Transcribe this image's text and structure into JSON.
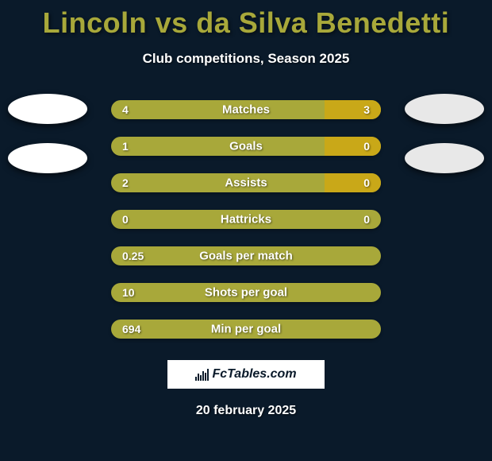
{
  "title": "Lincoln vs da Silva Benedetti",
  "subtitle": "Club competitions, Season 2025",
  "date": "20 february 2025",
  "logo_text": "FcTables.com",
  "colors": {
    "background": "#0a1a2a",
    "title_color": "#a8a83a",
    "text_color": "#ffffff",
    "bar_primary": "#a8a83a",
    "bar_secondary": "#c9a818",
    "avatar_left": "#ffffff",
    "avatar_right": "#e8e8e8"
  },
  "bars": [
    {
      "label": "Matches",
      "left": "4",
      "right": "3",
      "right_pct": 21
    },
    {
      "label": "Goals",
      "left": "1",
      "right": "0",
      "right_pct": 21
    },
    {
      "label": "Assists",
      "left": "2",
      "right": "0",
      "right_pct": 21
    },
    {
      "label": "Hattricks",
      "left": "0",
      "right": "0",
      "right_pct": 0
    },
    {
      "label": "Goals per match",
      "left": "0.25",
      "right": "",
      "right_pct": 0
    },
    {
      "label": "Shots per goal",
      "left": "10",
      "right": "",
      "right_pct": 0
    },
    {
      "label": "Min per goal",
      "left": "694",
      "right": "",
      "right_pct": 0
    }
  ]
}
